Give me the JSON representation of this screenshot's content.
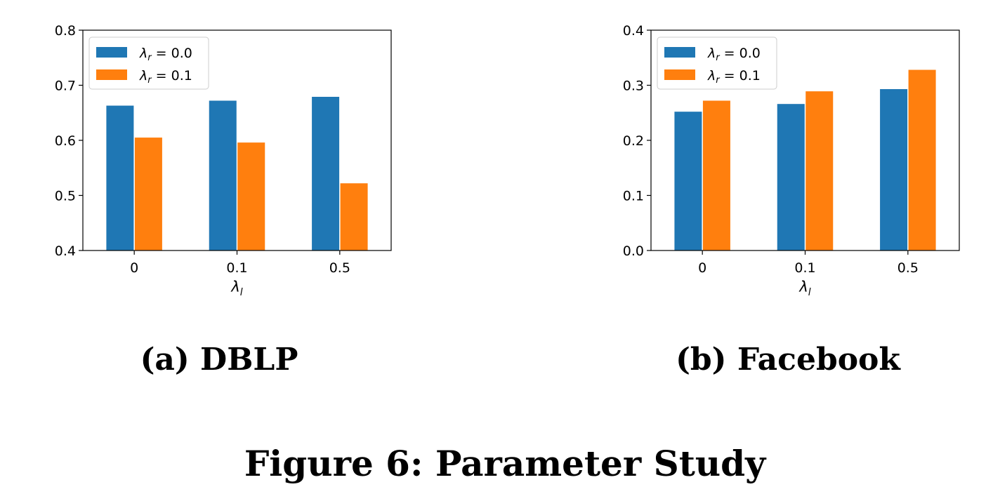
{
  "figure": {
    "caption": "Figure 6: Parameter Study"
  },
  "colors": {
    "series_0": "#1f77b4",
    "series_1": "#ff7f0e"
  },
  "chart_data": [
    {
      "type": "bar",
      "subcaption": "(a) DBLP",
      "xlabel_symbol": "λ",
      "xlabel_subscript": "l",
      "categories": [
        "0",
        "0.1",
        "0.5"
      ],
      "ylim": [
        0.4,
        0.8
      ],
      "yticks": [
        "0.4",
        "0.5",
        "0.6",
        "0.7",
        "0.8"
      ],
      "legend_position": "top-left",
      "series": [
        {
          "name": "λr = 0.0",
          "symbol": "λ",
          "subscript": "r",
          "value_text": "= 0.0",
          "values": [
            0.663,
            0.672,
            0.679
          ]
        },
        {
          "name": "λr = 0.1",
          "symbol": "λ",
          "subscript": "r",
          "value_text": "= 0.1",
          "values": [
            0.605,
            0.596,
            0.522
          ]
        }
      ]
    },
    {
      "type": "bar",
      "subcaption": "(b) Facebook",
      "xlabel_symbol": "λ",
      "xlabel_subscript": "l",
      "categories": [
        "0",
        "0.1",
        "0.5"
      ],
      "ylim": [
        0.0,
        0.4
      ],
      "yticks": [
        "0.0",
        "0.1",
        "0.2",
        "0.3",
        "0.4"
      ],
      "legend_position": "top-left",
      "series": [
        {
          "name": "λr = 0.0",
          "symbol": "λ",
          "subscript": "r",
          "value_text": "= 0.0",
          "values": [
            0.252,
            0.266,
            0.293
          ]
        },
        {
          "name": "λr = 0.1",
          "symbol": "λ",
          "subscript": "r",
          "value_text": "= 0.1",
          "values": [
            0.272,
            0.289,
            0.328
          ]
        }
      ]
    }
  ]
}
